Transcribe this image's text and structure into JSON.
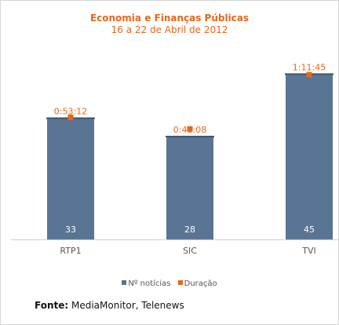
{
  "chart_data": {
    "type": "bar",
    "title": "Economia e Finanças Públicas",
    "subtitle": "16 a 22 de Abril de 2012",
    "categories": [
      "RTP1",
      "SIC",
      "TVI"
    ],
    "series": [
      {
        "name": "Nº notícias",
        "values": [
          33,
          28,
          45
        ],
        "value_labels": [
          "33",
          "28",
          "45"
        ],
        "color": "#5a7494"
      },
      {
        "name": "Duração",
        "values_seconds": [
          3192,
          2888,
          4305
        ],
        "value_labels": [
          "0:53:12",
          "0:48:08",
          "1:11:45"
        ],
        "color": "#e8661a"
      }
    ],
    "ylim_count": [
      0,
      50
    ],
    "ylim_duration_seconds": [
      0,
      4800
    ],
    "grid": false,
    "legend_position": "bottom"
  },
  "footer": {
    "label": "Fonte:",
    "text": " MediaMonitor, Telenews"
  }
}
